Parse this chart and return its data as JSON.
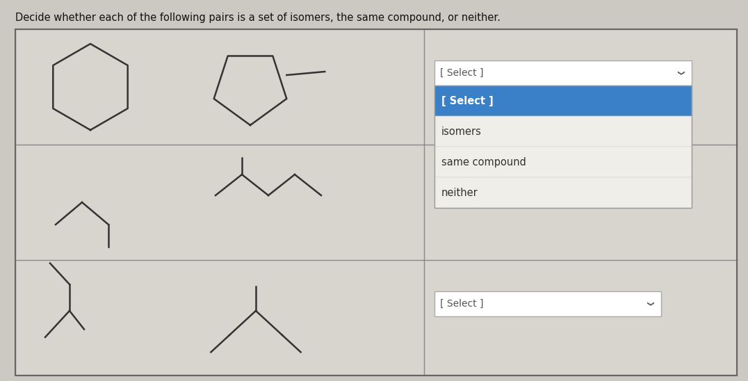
{
  "title": "Decide whether each of the following pairs is a set of isomers, the same compound, or neither.",
  "title_fontsize": 10.5,
  "bg_color": "#ccc8c2",
  "table_bg": "#d8d4ce",
  "dropdown_bg": "#ffffff",
  "dropdown_selected_bg": "#3a80c8",
  "dropdown_text_color": "#333333",
  "dropdown_selected_text": "#ffffff",
  "select_label": "[ Select ]",
  "dropdown_items": [
    "[ Select ]",
    "isomers",
    "same compound",
    "neither"
  ],
  "mol_color": "#333333",
  "mol_lw": 1.8
}
